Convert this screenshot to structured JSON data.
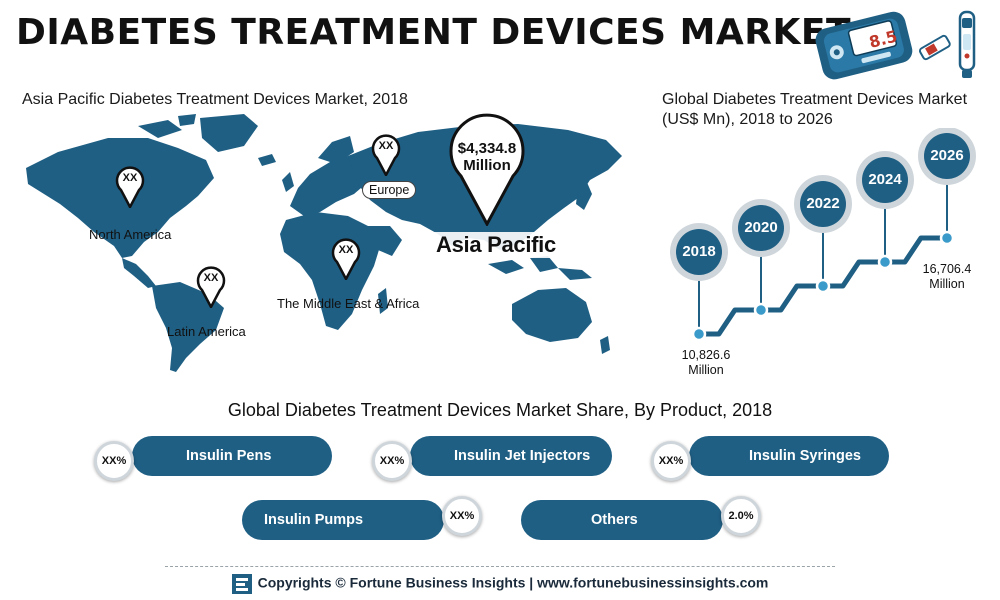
{
  "header": {
    "title": "DIABETES TREATMENT DEVICES MARKET"
  },
  "meter": {
    "reading": "8.5"
  },
  "map": {
    "title": "Asia Pacific Diabetes Treatment Devices Market, 2018",
    "regions": [
      {
        "name": "North America",
        "value": "XX"
      },
      {
        "name": "Europe",
        "value": "XX"
      },
      {
        "name": "Latin America",
        "value": "XX"
      },
      {
        "name": "The Middle East & Africa",
        "value": "XX"
      },
      {
        "name": "Asia Pacific",
        "value": "$4,334.8",
        "unit": "Million"
      }
    ]
  },
  "chart_data": {
    "type": "line",
    "title": "Global Diabetes Treatment Devices Market (US$ Mn), 2018 to 2026",
    "x": [
      "2018",
      "2020",
      "2022",
      "2024",
      "2026"
    ],
    "values": [
      10826.6,
      null,
      null,
      null,
      16706.4
    ],
    "start_label": {
      "value": "10,826.6",
      "unit": "Million"
    },
    "end_label": {
      "value": "16,706.4",
      "unit": "Million"
    }
  },
  "share": {
    "title": "Global Diabetes Treatment Devices Market Share, By Product, 2018",
    "products": [
      {
        "name": "Insulin Pens",
        "value": "XX%"
      },
      {
        "name": "Insulin Jet Injectors",
        "value": "XX%"
      },
      {
        "name": "Insulin Syringes",
        "value": "XX%"
      },
      {
        "name": "Insulin Pumps",
        "value": "XX%"
      },
      {
        "name": "Others",
        "value": "2.0%"
      }
    ]
  },
  "footer": {
    "text": "Copyrights © Fortune Business Insights | www.fortunebusinessinsights.com"
  },
  "colors": {
    "primary": "#1f5f84",
    "ring": "#cfd6db",
    "dot": "#3a9ac9"
  }
}
